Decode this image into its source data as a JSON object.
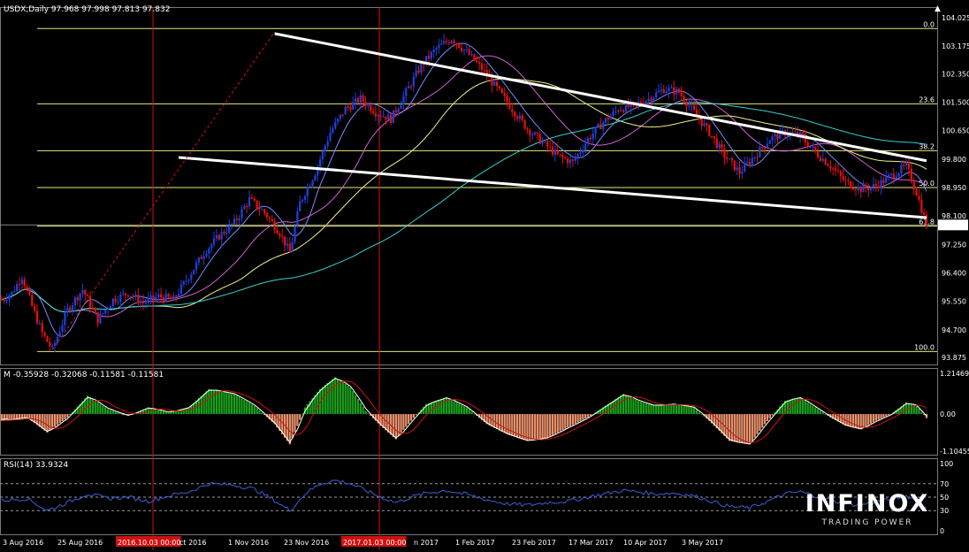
{
  "chart_data": [
    {
      "type": "candlestick",
      "title": "USDX,Daily  97.968 97.998 97.813 97.832",
      "ylim": [
        93.875,
        104.025
      ],
      "y_ticks": [
        "104.025",
        "103.175",
        "102.350",
        "101.500",
        "100.650",
        "99.800",
        "98.950",
        "98.100",
        "97.250",
        "96.400",
        "95.550",
        "94.700",
        "93.875"
      ],
      "last_price": "97.832",
      "x_tick_labels": [
        "3 Aug 2016",
        "25 Aug 2016",
        "2016.10.03 00:00",
        "ct 2016",
        "1 Nov 2016",
        "23 Nov 2016",
        "2017.01.03 00:00",
        "n 2017",
        "1 Feb 2017",
        "23 Feb 2017",
        "17 Mar 2017",
        "10 Apr 2017",
        "3 May 2017"
      ],
      "price_path": [
        {
          "t": 0,
          "p": 95.6
        },
        {
          "t": 4,
          "p": 95.8
        },
        {
          "t": 8,
          "p": 96.3
        },
        {
          "t": 12,
          "p": 95.4
        },
        {
          "t": 16,
          "p": 94.6
        },
        {
          "t": 20,
          "p": 94.1
        },
        {
          "t": 26,
          "p": 95.3
        },
        {
          "t": 32,
          "p": 95.9
        },
        {
          "t": 38,
          "p": 95.0
        },
        {
          "t": 44,
          "p": 95.6
        },
        {
          "t": 50,
          "p": 95.8
        },
        {
          "t": 56,
          "p": 95.5
        },
        {
          "t": 62,
          "p": 95.7
        },
        {
          "t": 68,
          "p": 95.6
        },
        {
          "t": 74,
          "p": 96.3
        },
        {
          "t": 80,
          "p": 97.0
        },
        {
          "t": 86,
          "p": 97.5
        },
        {
          "t": 92,
          "p": 97.9
        },
        {
          "t": 98,
          "p": 98.6
        },
        {
          "t": 104,
          "p": 98.2
        },
        {
          "t": 110,
          "p": 97.6
        },
        {
          "t": 114,
          "p": 97.0
        },
        {
          "t": 118,
          "p": 98.5
        },
        {
          "t": 124,
          "p": 99.4
        },
        {
          "t": 130,
          "p": 100.6
        },
        {
          "t": 136,
          "p": 101.3
        },
        {
          "t": 142,
          "p": 101.6
        },
        {
          "t": 148,
          "p": 101.2
        },
        {
          "t": 154,
          "p": 101.0
        },
        {
          "t": 160,
          "p": 101.8
        },
        {
          "t": 166,
          "p": 102.6
        },
        {
          "t": 172,
          "p": 103.1
        },
        {
          "t": 178,
          "p": 103.4
        },
        {
          "t": 184,
          "p": 103.0
        },
        {
          "t": 190,
          "p": 102.5
        },
        {
          "t": 196,
          "p": 101.9
        },
        {
          "t": 202,
          "p": 101.3
        },
        {
          "t": 208,
          "p": 100.7
        },
        {
          "t": 214,
          "p": 100.3
        },
        {
          "t": 220,
          "p": 99.9
        },
        {
          "t": 226,
          "p": 99.7
        },
        {
          "t": 232,
          "p": 100.4
        },
        {
          "t": 238,
          "p": 100.9
        },
        {
          "t": 244,
          "p": 101.3
        },
        {
          "t": 250,
          "p": 101.4
        },
        {
          "t": 256,
          "p": 101.6
        },
        {
          "t": 262,
          "p": 101.9
        },
        {
          "t": 268,
          "p": 101.8
        },
        {
          "t": 274,
          "p": 101.2
        },
        {
          "t": 280,
          "p": 100.6
        },
        {
          "t": 286,
          "p": 99.9
        },
        {
          "t": 292,
          "p": 99.4
        },
        {
          "t": 298,
          "p": 99.9
        },
        {
          "t": 304,
          "p": 100.4
        },
        {
          "t": 310,
          "p": 100.6
        },
        {
          "t": 316,
          "p": 100.5
        },
        {
          "t": 322,
          "p": 100.0
        },
        {
          "t": 328,
          "p": 99.6
        },
        {
          "t": 334,
          "p": 99.1
        },
        {
          "t": 340,
          "p": 98.9
        },
        {
          "t": 346,
          "p": 99.0
        },
        {
          "t": 352,
          "p": 99.3
        },
        {
          "t": 358,
          "p": 99.6
        },
        {
          "t": 362,
          "p": 98.8
        },
        {
          "t": 366,
          "p": 97.83
        }
      ],
      "levels": [
        {
          "label": "0.0",
          "value": 103.7
        },
        {
          "label": "23.6",
          "value": 101.45
        },
        {
          "label": "38.2",
          "value": 100.05
        },
        {
          "label": "50.0",
          "value": 98.95
        },
        {
          "label": "61.8",
          "value": 97.8
        },
        {
          "label": "100.0",
          "value": 94.05
        }
      ]
    },
    {
      "type": "histogram",
      "title": "M -0.35928 -0.32068 -0.11581 -0.11581",
      "ylim": [
        -1.10455,
        1.21469
      ],
      "y_ticks": [
        "1.21469",
        "0.00",
        "-1.10455"
      ],
      "hist_path": [
        {
          "t": 0,
          "v": -0.2
        },
        {
          "t": 10,
          "v": -0.1
        },
        {
          "t": 18,
          "v": -0.55
        },
        {
          "t": 26,
          "v": -0.1
        },
        {
          "t": 34,
          "v": 0.55
        },
        {
          "t": 42,
          "v": 0.15
        },
        {
          "t": 50,
          "v": -0.05
        },
        {
          "t": 58,
          "v": 0.2
        },
        {
          "t": 66,
          "v": 0.05
        },
        {
          "t": 74,
          "v": 0.2
        },
        {
          "t": 82,
          "v": 0.75
        },
        {
          "t": 92,
          "v": 0.6
        },
        {
          "t": 100,
          "v": 0.25
        },
        {
          "t": 108,
          "v": -0.3
        },
        {
          "t": 114,
          "v": -0.9
        },
        {
          "t": 120,
          "v": 0.2
        },
        {
          "t": 126,
          "v": 0.75
        },
        {
          "t": 132,
          "v": 1.1
        },
        {
          "t": 138,
          "v": 0.8
        },
        {
          "t": 144,
          "v": 0.1
        },
        {
          "t": 150,
          "v": -0.35
        },
        {
          "t": 156,
          "v": -0.75
        },
        {
          "t": 162,
          "v": -0.2
        },
        {
          "t": 168,
          "v": 0.3
        },
        {
          "t": 176,
          "v": 0.5
        },
        {
          "t": 184,
          "v": 0.2
        },
        {
          "t": 192,
          "v": -0.3
        },
        {
          "t": 200,
          "v": -0.6
        },
        {
          "t": 208,
          "v": -0.8
        },
        {
          "t": 216,
          "v": -0.7
        },
        {
          "t": 224,
          "v": -0.4
        },
        {
          "t": 232,
          "v": -0.1
        },
        {
          "t": 240,
          "v": 0.3
        },
        {
          "t": 246,
          "v": 0.6
        },
        {
          "t": 252,
          "v": 0.4
        },
        {
          "t": 258,
          "v": 0.25
        },
        {
          "t": 266,
          "v": 0.3
        },
        {
          "t": 274,
          "v": 0.2
        },
        {
          "t": 280,
          "v": -0.2
        },
        {
          "t": 288,
          "v": -0.8
        },
        {
          "t": 296,
          "v": -0.9
        },
        {
          "t": 302,
          "v": -0.3
        },
        {
          "t": 310,
          "v": 0.4
        },
        {
          "t": 316,
          "v": 0.5
        },
        {
          "t": 322,
          "v": 0.2
        },
        {
          "t": 328,
          "v": -0.1
        },
        {
          "t": 334,
          "v": -0.35
        },
        {
          "t": 340,
          "v": -0.45
        },
        {
          "t": 346,
          "v": -0.2
        },
        {
          "t": 352,
          "v": 0.0
        },
        {
          "t": 358,
          "v": 0.35
        },
        {
          "t": 362,
          "v": 0.25
        },
        {
          "t": 366,
          "v": -0.12
        }
      ]
    },
    {
      "type": "line",
      "title": "RSI(14) 33.9324",
      "ylim": [
        0,
        100
      ],
      "y_ticks": [
        "100",
        "70",
        "50",
        "30",
        "0"
      ],
      "levels": [
        70,
        50,
        30
      ],
      "rsi_path": [
        {
          "t": 0,
          "v": 45
        },
        {
          "t": 10,
          "v": 48
        },
        {
          "t": 18,
          "v": 30
        },
        {
          "t": 26,
          "v": 42
        },
        {
          "t": 34,
          "v": 55
        },
        {
          "t": 42,
          "v": 48
        },
        {
          "t": 50,
          "v": 50
        },
        {
          "t": 58,
          "v": 44
        },
        {
          "t": 66,
          "v": 52
        },
        {
          "t": 74,
          "v": 58
        },
        {
          "t": 82,
          "v": 70
        },
        {
          "t": 92,
          "v": 68
        },
        {
          "t": 100,
          "v": 62
        },
        {
          "t": 108,
          "v": 45
        },
        {
          "t": 114,
          "v": 30
        },
        {
          "t": 120,
          "v": 55
        },
        {
          "t": 126,
          "v": 70
        },
        {
          "t": 132,
          "v": 75
        },
        {
          "t": 138,
          "v": 70
        },
        {
          "t": 144,
          "v": 60
        },
        {
          "t": 150,
          "v": 50
        },
        {
          "t": 156,
          "v": 42
        },
        {
          "t": 162,
          "v": 50
        },
        {
          "t": 168,
          "v": 56
        },
        {
          "t": 176,
          "v": 60
        },
        {
          "t": 184,
          "v": 54
        },
        {
          "t": 192,
          "v": 46
        },
        {
          "t": 200,
          "v": 40
        },
        {
          "t": 208,
          "v": 38
        },
        {
          "t": 216,
          "v": 42
        },
        {
          "t": 224,
          "v": 44
        },
        {
          "t": 232,
          "v": 50
        },
        {
          "t": 240,
          "v": 56
        },
        {
          "t": 246,
          "v": 60
        },
        {
          "t": 252,
          "v": 58
        },
        {
          "t": 258,
          "v": 55
        },
        {
          "t": 266,
          "v": 56
        },
        {
          "t": 274,
          "v": 52
        },
        {
          "t": 280,
          "v": 45
        },
        {
          "t": 288,
          "v": 36
        },
        {
          "t": 296,
          "v": 34
        },
        {
          "t": 302,
          "v": 42
        },
        {
          "t": 310,
          "v": 55
        },
        {
          "t": 316,
          "v": 58
        },
        {
          "t": 322,
          "v": 52
        },
        {
          "t": 328,
          "v": 46
        },
        {
          "t": 334,
          "v": 40
        },
        {
          "t": 340,
          "v": 38
        },
        {
          "t": 346,
          "v": 44
        },
        {
          "t": 352,
          "v": 46
        },
        {
          "t": 358,
          "v": 52
        },
        {
          "t": 362,
          "v": 46
        },
        {
          "t": 366,
          "v": 34
        }
      ]
    }
  ],
  "colors": {
    "background": "#000000",
    "bull": "#1f3fd6",
    "bear": "#e01010",
    "fib": "#e8e87a",
    "trend": "#ffffff",
    "ma_fast": "#7c86ff",
    "ma_mid": "#d35fd3",
    "ma_slow": "#f0f08a",
    "ma_long": "#35d0d0",
    "hist_pos": "#1a9e1a",
    "hist_neg": "#e8906a",
    "signal": "#d01010",
    "rsi": "#3a60d8",
    "vline": "#d01010"
  },
  "brand": {
    "name": "INFINOX",
    "tagline": "TRADING POWER"
  }
}
